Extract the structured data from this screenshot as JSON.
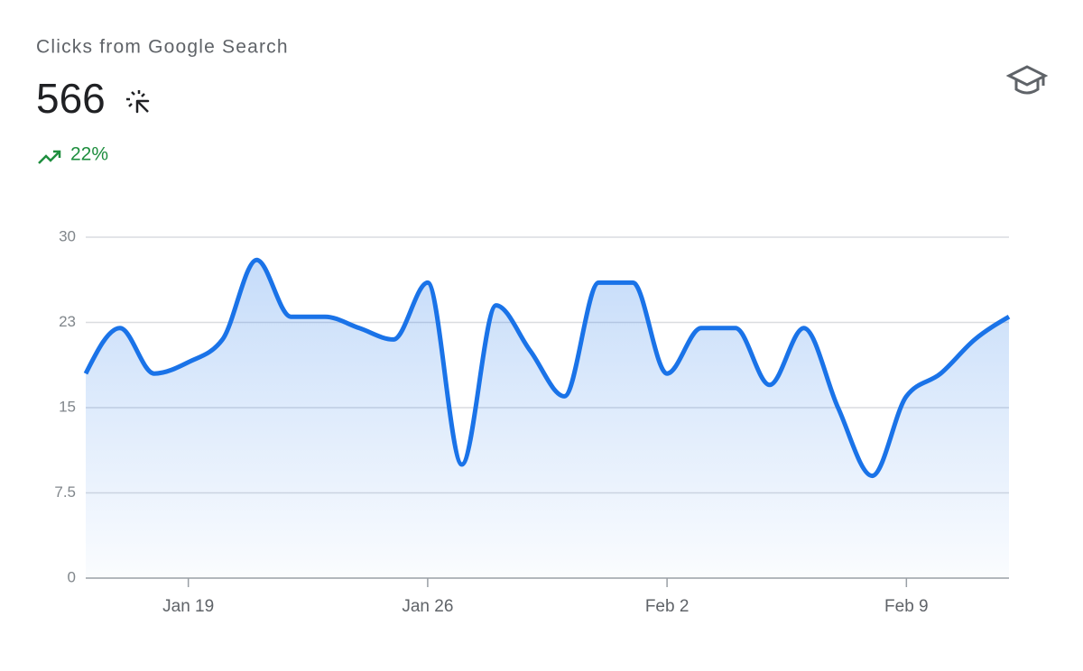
{
  "header": {
    "title": "Clicks from Google Search",
    "total": "566",
    "change": "22%"
  },
  "chart_data": {
    "type": "area",
    "categories": [
      null,
      null,
      null,
      "Jan 19",
      null,
      null,
      null,
      null,
      null,
      null,
      "Jan 26",
      null,
      null,
      null,
      null,
      null,
      null,
      "Feb 2",
      null,
      null,
      null,
      null,
      null,
      null,
      "Feb 9",
      null,
      null,
      null
    ],
    "series": [
      {
        "name": "Clicks",
        "color": "#1a73e8",
        "values": [
          18,
          22,
          18,
          19,
          21,
          28,
          23,
          23,
          22,
          21,
          26,
          10,
          24,
          20,
          16,
          26,
          26,
          18,
          22,
          22,
          17,
          22,
          15,
          9,
          16,
          18,
          21,
          23
        ]
      }
    ],
    "ylim": [
      0,
      30
    ],
    "yticks": [
      0,
      7.5,
      15,
      {
        "value": 22.5,
        "label": "23"
      },
      30
    ],
    "grid": true
  }
}
